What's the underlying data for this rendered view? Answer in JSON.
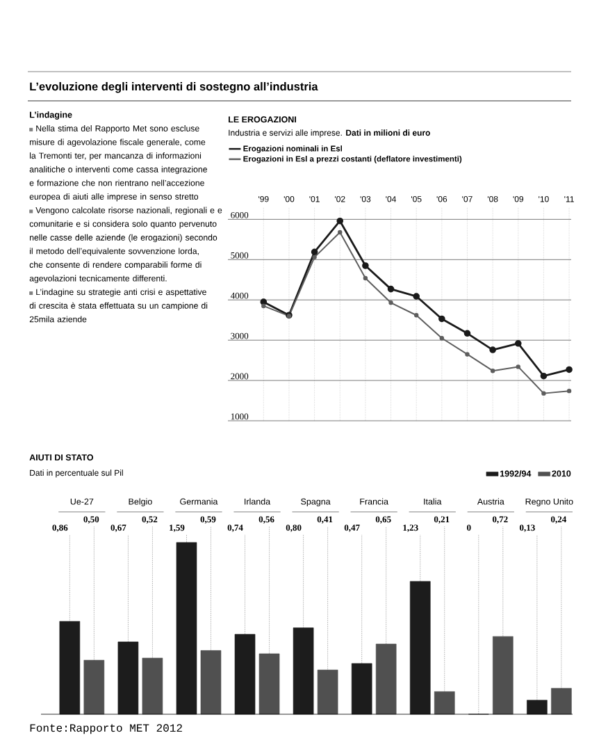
{
  "chart_data": [
    {
      "type": "other",
      "title": "L’evoluzione degli interventi di sostegno all’industria",
      "subtitle": "L’indagine",
      "annotations": [
        "Nella stima del Rapporto Met sono escluse misure di agevolazione fiscale generale, come la Tremonti ter, per mancanza di informazioni analitiche o interventi come cassa integrazione e formazione che non rientrano nell’accezione europea di aiuti alle imprese in senso stretto",
        "Vengono calcolate risorse nazionali, regionali e e comunitarie e si considera solo quanto pervenuto nelle casse delle aziende (le erogazioni) secondo il metodo dell’equivalente sovvenzione lorda, che consente di rendere comparabili forme di agevolazioni tecnicamente differenti.",
        "L’indagine su strategie anti crisi e aspettative di crescita è stata effettuata su un campione di 25mila aziende"
      ]
    },
    {
      "type": "line",
      "title": "LE EROGAZIONI",
      "subtitle": "Industria e servizi alle imprese. **Dati in milioni di euro**",
      "categories": [
        "'99",
        "'00",
        "'01",
        "'02",
        "'03",
        "'04",
        "'05",
        "'06",
        "'07",
        "'08",
        "'09",
        "'10",
        "'11"
      ],
      "series": [
        {
          "name": "Erogazioni  nominali in Esl",
          "color": "#1a1a1a",
          "values": [
            3950,
            3620,
            5190,
            5960,
            4850,
            4270,
            4090,
            3530,
            3170,
            2760,
            2920,
            2110,
            2270
          ]
        },
        {
          "name": "Erogazioni in Esl a prezzi costanti (deflatore investimenti)",
          "color": "#5e5e5e",
          "values": [
            3850,
            3600,
            5060,
            5680,
            4540,
            3930,
            3620,
            3050,
            2650,
            2240,
            2340,
            1680,
            1740
          ]
        }
      ],
      "ylim": [
        1000,
        6300
      ],
      "yticks": [
        1000,
        2000,
        3000,
        4000,
        5000,
        6000
      ],
      "grid": true,
      "legend": "top left",
      "marker": "circle"
    },
    {
      "type": "bar",
      "title": "AIUTI DI STATO",
      "subtitle": "Dati in percentuale sul Pil",
      "categories": [
        "Ue-27",
        "Belgio",
        "Germania",
        "Irlanda",
        "Spagna",
        "Francia",
        "Italia",
        "Austria",
        "Regno Unito"
      ],
      "series": [
        {
          "name": "1992/94",
          "color": "#1c1c1c",
          "values": [
            0.86,
            0.67,
            1.59,
            0.74,
            0.8,
            0.47,
            1.23,
            0,
            0.13
          ],
          "value_labels": [
            "0,86",
            "0,67",
            "1,59",
            "0,74",
            "0,80",
            "0,47",
            "1,23",
            "0",
            "0,13"
          ]
        },
        {
          "name": "2010",
          "color": "#505050",
          "values": [
            0.5,
            0.52,
            0.59,
            0.56,
            0.41,
            0.65,
            0.21,
            0.72,
            0.24
          ],
          "value_labels": [
            "0,50",
            "0,52",
            "0,59",
            "0,56",
            "0,41",
            "0,65",
            "0,21",
            "0,72",
            "0,24"
          ]
        }
      ],
      "legend": "top right",
      "annotations": [
        "Fonte:Rapporto MET 2012"
      ]
    }
  ]
}
